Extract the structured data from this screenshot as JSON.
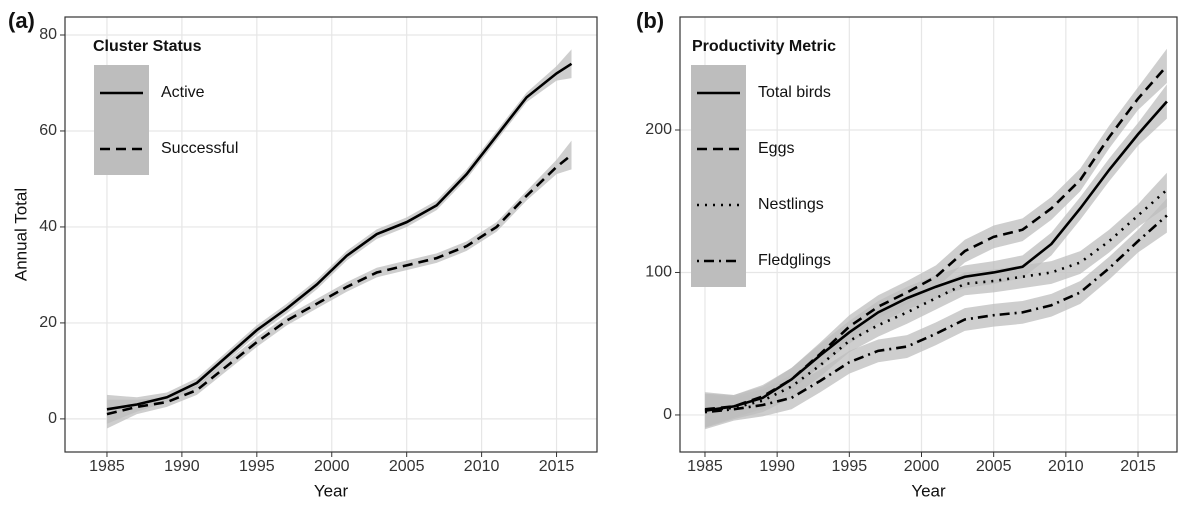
{
  "chart_data": [
    {
      "type": "line",
      "panel_label": "(a)",
      "xlabel": "Year",
      "ylabel": "Annual Total",
      "legend_title": "Cluster Status",
      "legend": "top-left",
      "grid": true,
      "band_color": "#bdbdbd",
      "xlim": [
        1982.2,
        2017.7
      ],
      "ylim": [
        -6.9,
        83.75
      ],
      "xticks": [
        1985,
        1990,
        1995,
        2000,
        2005,
        2010,
        2015
      ],
      "yticks": [
        0,
        20,
        40,
        60,
        80
      ],
      "x": [
        1985,
        1987,
        1989,
        1991,
        1993,
        1995,
        1997,
        1999,
        2001,
        2003,
        2005,
        2007,
        2009,
        2011,
        2013,
        2015,
        2016
      ],
      "series": [
        {
          "name": "Active",
          "color": "#000000",
          "dash": "solid",
          "values": [
            2,
            3,
            4.5,
            7.5,
            13,
            18.5,
            23,
            28,
            34,
            38.5,
            41,
            44.5,
            51,
            59,
            67,
            72,
            74
          ],
          "lower": [
            -1,
            1.5,
            3.5,
            6.5,
            12,
            17.5,
            22,
            27,
            33,
            37.5,
            40,
            43.5,
            50,
            58,
            66,
            70.5,
            71
          ],
          "upper": [
            5,
            4.5,
            5.5,
            8.5,
            14,
            19.5,
            24,
            29,
            35,
            39.5,
            42,
            45.5,
            52,
            60,
            68,
            73.5,
            77
          ]
        },
        {
          "name": "Successful",
          "color": "#000000",
          "dash": "dashed",
          "values": [
            1,
            2.5,
            3.5,
            6,
            11,
            16,
            20.5,
            24,
            27.5,
            30.5,
            32,
            33.5,
            36,
            40,
            46.5,
            52.5,
            55
          ],
          "lower": [
            -2,
            1,
            2.5,
            5,
            10,
            15,
            19.5,
            23,
            26.5,
            29.5,
            31,
            32.5,
            35,
            39,
            45.5,
            51,
            52
          ],
          "upper": [
            4,
            4,
            4.5,
            7,
            12,
            17,
            21.5,
            25,
            28.5,
            31.5,
            33,
            34.5,
            37,
            41,
            47.5,
            54,
            58
          ]
        }
      ]
    },
    {
      "type": "line",
      "panel_label": "(b)",
      "xlabel": "Year",
      "legend_title": "Productivity Metric",
      "legend": "top-left",
      "grid": true,
      "band_color": "#bdbdbd",
      "xlim": [
        1983.27,
        2017.7
      ],
      "ylim": [
        -26,
        279.3
      ],
      "xticks": [
        1985,
        1990,
        1995,
        2000,
        2005,
        2010,
        2015
      ],
      "yticks": [
        0,
        100,
        200
      ],
      "x": [
        1985,
        1987,
        1989,
        1991,
        1993,
        1995,
        1997,
        1999,
        2001,
        2003,
        2005,
        2007,
        2009,
        2011,
        2013,
        2015,
        2017
      ],
      "series": [
        {
          "name": "Total birds",
          "color": "#000000",
          "dash": "solid",
          "values": [
            3,
            6,
            12,
            25,
            42,
            58,
            72,
            82,
            90,
            97,
            100,
            104,
            120,
            145,
            172,
            197,
            220
          ],
          "lower": [
            -9,
            -2,
            4,
            17,
            34,
            50,
            64,
            74,
            82,
            89,
            92,
            96,
            112,
            137,
            164,
            189,
            208
          ],
          "upper": [
            15,
            14,
            20,
            33,
            50,
            66,
            80,
            90,
            98,
            105,
            108,
            112,
            128,
            153,
            180,
            205,
            232
          ]
        },
        {
          "name": "Eggs",
          "color": "#000000",
          "dash": "dashed",
          "values": [
            4,
            6,
            13,
            25,
            43,
            62,
            76,
            86,
            97,
            115,
            125,
            130,
            145,
            165,
            195,
            222,
            245
          ],
          "lower": [
            -8,
            -2,
            5,
            17,
            35,
            54,
            68,
            78,
            89,
            107,
            117,
            122,
            137,
            157,
            187,
            214,
            233
          ],
          "upper": [
            16,
            14,
            21,
            33,
            51,
            70,
            84,
            94,
            105,
            123,
            133,
            138,
            153,
            173,
            203,
            230,
            257
          ]
        },
        {
          "name": "Nestlings",
          "color": "#000000",
          "dash": "dotted",
          "values": [
            3,
            5,
            10,
            20,
            35,
            52,
            63,
            72,
            82,
            92,
            94,
            97,
            100,
            107,
            122,
            140,
            158
          ],
          "lower": [
            -9,
            -3,
            2,
            12,
            27,
            44,
            55,
            64,
            74,
            84,
            86,
            89,
            92,
            99,
            114,
            132,
            146
          ],
          "upper": [
            15,
            13,
            18,
            28,
            43,
            60,
            71,
            80,
            90,
            100,
            102,
            105,
            108,
            115,
            130,
            148,
            170
          ]
        },
        {
          "name": "Fledglings",
          "color": "#000000",
          "dash": "dotdash",
          "values": [
            2,
            4,
            7,
            12,
            24,
            37,
            45,
            48,
            57,
            67,
            70,
            72,
            77,
            86,
            103,
            122,
            140
          ],
          "lower": [
            -10,
            -4,
            -1,
            4,
            16,
            29,
            37,
            40,
            49,
            59,
            62,
            64,
            69,
            78,
            95,
            114,
            128
          ],
          "upper": [
            14,
            12,
            15,
            20,
            32,
            45,
            53,
            56,
            65,
            75,
            78,
            80,
            85,
            94,
            111,
            130,
            152
          ]
        }
      ]
    }
  ]
}
